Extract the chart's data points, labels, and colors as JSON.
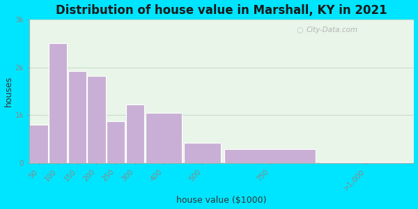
{
  "title": "Distribution of house value in Marshall, KY in 2021",
  "xlabel": "house value ($1000)",
  "ylabel": "houses",
  "categories": [
    "50",
    "100",
    "150",
    "200",
    "250",
    "300",
    "400",
    "500",
    "750",
    ">1,000"
  ],
  "bin_edges": [
    0,
    50,
    100,
    150,
    200,
    250,
    300,
    400,
    500,
    750,
    1000
  ],
  "values": [
    800,
    2500,
    1920,
    1820,
    870,
    1220,
    1050,
    430,
    290,
    20
  ],
  "bar_color": "#c9afd5",
  "bar_edgecolor": "#ffffff",
  "bg_outer": "#00e5ff",
  "bg_plot": "#e8f5e8",
  "yticks": [
    0,
    1000,
    2000,
    3000
  ],
  "ytick_labels": [
    "0",
    "1k",
    "2k",
    "3k"
  ],
  "ylim": [
    0,
    3000
  ],
  "xlim": [
    0,
    1000
  ],
  "title_fontsize": 12,
  "axis_label_fontsize": 9,
  "tick_fontsize": 7.5,
  "watermark": "City-Data.com"
}
